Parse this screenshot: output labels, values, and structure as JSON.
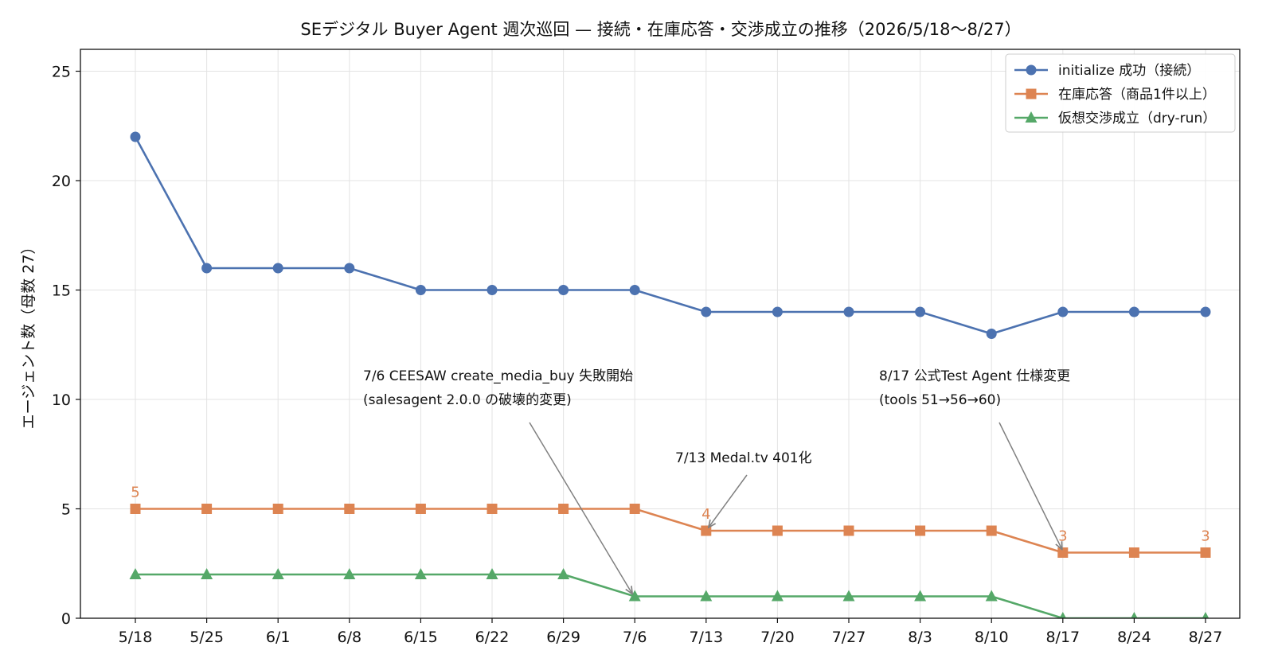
{
  "chart_data": {
    "type": "line",
    "title": "SEデジタル Buyer Agent 週次巡回 — 接続・在庫応答・交渉成立の推移（2026/5/18〜8/27）",
    "xlabel": "",
    "ylabel": "エージェント数（母数 27）",
    "ylim": [
      0,
      26
    ],
    "yticks": [
      0,
      5,
      10,
      15,
      20,
      25
    ],
    "grid": true,
    "legend_position": "top-right",
    "categories": [
      "5/18",
      "5/25",
      "6/1",
      "6/8",
      "6/15",
      "6/22",
      "6/29",
      "7/6",
      "7/13",
      "7/20",
      "7/27",
      "8/3",
      "8/10",
      "8/17",
      "8/24",
      "8/27"
    ],
    "series": [
      {
        "name": "initialize 成功（接続）",
        "color": "#4c72b0",
        "marker": "circle",
        "values": [
          22,
          16,
          16,
          16,
          15,
          15,
          15,
          15,
          14,
          14,
          14,
          14,
          13,
          14,
          14,
          14
        ]
      },
      {
        "name": "在庫応答（商品1件以上）",
        "color": "#dd8452",
        "marker": "square",
        "values": [
          5,
          5,
          5,
          5,
          5,
          5,
          5,
          5,
          4,
          4,
          4,
          4,
          4,
          3,
          3,
          3
        ],
        "data_labels": [
          {
            "index": 0,
            "text": "5"
          },
          {
            "index": 8,
            "text": "4"
          },
          {
            "index": 13,
            "text": "3"
          },
          {
            "index": 15,
            "text": "3"
          }
        ]
      },
      {
        "name": "仮想交渉成立（dry-run）",
        "color": "#55a868",
        "marker": "triangle",
        "values": [
          2,
          2,
          2,
          2,
          2,
          2,
          2,
          1,
          1,
          1,
          1,
          1,
          1,
          0,
          0,
          0
        ]
      }
    ],
    "annotations": [
      {
        "lines": [
          "7/6 CEESAW create_media_buy 失敗開始",
          "(salesagent 2.0.0 の破壊的変更)"
        ],
        "target_index": 7,
        "target_value": 1
      },
      {
        "lines": [
          "7/13 Medal.tv 401化"
        ],
        "target_index": 8,
        "target_value": 4
      },
      {
        "lines": [
          "8/17 公式Test Agent 仕様変更",
          "(tools 51→56→60)"
        ],
        "target_index": 13,
        "target_value": 3
      }
    ]
  }
}
